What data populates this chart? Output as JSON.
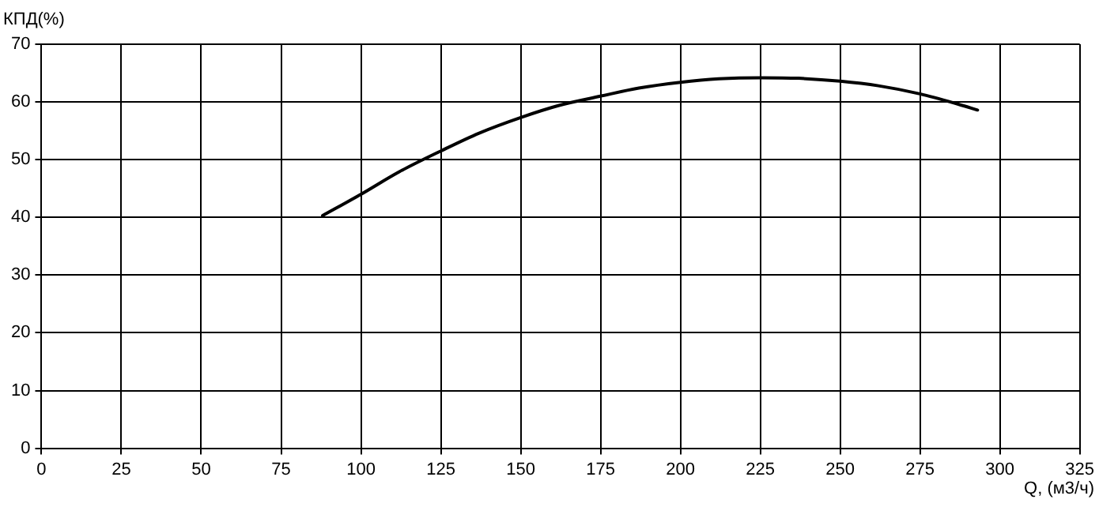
{
  "chart_data": {
    "type": "line",
    "xlabel": "Q, (м3/ч)",
    "ylabel": "КПД(%)",
    "series": [
      {
        "color": "#000000",
        "x": [
          88,
          100,
          112,
          125,
          137,
          150,
          162,
          175,
          187,
          200,
          212,
          225,
          237,
          250,
          262,
          275,
          287,
          293
        ],
        "values": [
          40.3,
          44,
          47.9,
          51.5,
          54.6,
          57.3,
          59.4,
          61,
          62.4,
          63.4,
          64,
          64.2,
          64.1,
          63.6,
          62.8,
          61.4,
          59.6,
          58.6
        ]
      }
    ],
    "xlim": [
      0,
      325
    ],
    "xticks": [
      0,
      25,
      50,
      75,
      100,
      125,
      150,
      175,
      200,
      225,
      250,
      275,
      300,
      325
    ],
    "ylim": [
      0,
      70
    ],
    "yticks": [
      0,
      10,
      20,
      30,
      40,
      50,
      60,
      70
    ],
    "grid": true,
    "legend": false,
    "marker": "none",
    "line_style": "solid"
  }
}
